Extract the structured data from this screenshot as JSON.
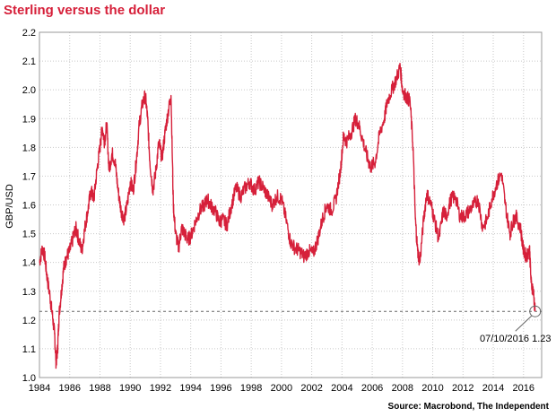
{
  "title": "Sterling versus the dollar",
  "source": "Source: Macrobond, The Independent",
  "chart_data": {
    "type": "line",
    "title": "Sterling versus the dollar",
    "xlabel": "",
    "ylabel": "GBP/USD",
    "xlim": [
      1984,
      2017.2
    ],
    "ylim": [
      1.0,
      2.2
    ],
    "x_ticks": [
      "1984",
      "1986",
      "1988",
      "1990",
      "1992",
      "1994",
      "1996",
      "1998",
      "2000",
      "2002",
      "2004",
      "2006",
      "2008",
      "2010",
      "2012",
      "2014",
      "2016"
    ],
    "y_ticks": [
      "1.0",
      "1.1",
      "1.2",
      "1.3",
      "1.4",
      "1.5",
      "1.6",
      "1.7",
      "1.8",
      "1.9",
      "2.0",
      "2.1",
      "2.2"
    ],
    "grid": true,
    "line_color": "#d6203a",
    "reference_line": 1.23,
    "annotation": {
      "label": "07/10/2016 1.23",
      "x": 2016.77,
      "y": 1.23
    },
    "series": [
      {
        "values": [
          [
            1984.0,
            1.4
          ],
          [
            1984.2,
            1.45
          ],
          [
            1984.35,
            1.42
          ],
          [
            1984.5,
            1.35
          ],
          [
            1984.7,
            1.28
          ],
          [
            1984.85,
            1.22
          ],
          [
            1985.0,
            1.15
          ],
          [
            1985.1,
            1.05
          ],
          [
            1985.2,
            1.1
          ],
          [
            1985.3,
            1.22
          ],
          [
            1985.45,
            1.3
          ],
          [
            1985.6,
            1.38
          ],
          [
            1985.8,
            1.42
          ],
          [
            1986.0,
            1.44
          ],
          [
            1986.2,
            1.48
          ],
          [
            1986.4,
            1.52
          ],
          [
            1986.6,
            1.48
          ],
          [
            1986.8,
            1.44
          ],
          [
            1987.0,
            1.52
          ],
          [
            1987.2,
            1.58
          ],
          [
            1987.4,
            1.65
          ],
          [
            1987.6,
            1.62
          ],
          [
            1987.8,
            1.72
          ],
          [
            1988.0,
            1.8
          ],
          [
            1988.15,
            1.87
          ],
          [
            1988.3,
            1.82
          ],
          [
            1988.45,
            1.88
          ],
          [
            1988.6,
            1.72
          ],
          [
            1988.8,
            1.78
          ],
          [
            1989.0,
            1.75
          ],
          [
            1989.2,
            1.65
          ],
          [
            1989.4,
            1.58
          ],
          [
            1989.6,
            1.55
          ],
          [
            1989.8,
            1.6
          ],
          [
            1990.0,
            1.68
          ],
          [
            1990.2,
            1.65
          ],
          [
            1990.4,
            1.75
          ],
          [
            1990.6,
            1.88
          ],
          [
            1990.8,
            1.95
          ],
          [
            1991.0,
            1.98
          ],
          [
            1991.15,
            1.9
          ],
          [
            1991.3,
            1.75
          ],
          [
            1991.5,
            1.65
          ],
          [
            1991.7,
            1.72
          ],
          [
            1991.9,
            1.82
          ],
          [
            1992.1,
            1.76
          ],
          [
            1992.3,
            1.85
          ],
          [
            1992.5,
            1.92
          ],
          [
            1992.7,
            1.98
          ],
          [
            1992.85,
            1.6
          ],
          [
            1993.0,
            1.5
          ],
          [
            1993.2,
            1.45
          ],
          [
            1993.4,
            1.52
          ],
          [
            1993.6,
            1.5
          ],
          [
            1993.8,
            1.48
          ],
          [
            1994.0,
            1.49
          ],
          [
            1994.3,
            1.54
          ],
          [
            1994.6,
            1.58
          ],
          [
            1994.9,
            1.6
          ],
          [
            1995.1,
            1.62
          ],
          [
            1995.3,
            1.6
          ],
          [
            1995.6,
            1.58
          ],
          [
            1995.9,
            1.54
          ],
          [
            1996.1,
            1.55
          ],
          [
            1996.4,
            1.53
          ],
          [
            1996.7,
            1.6
          ],
          [
            1997.0,
            1.66
          ],
          [
            1997.3,
            1.63
          ],
          [
            1997.6,
            1.66
          ],
          [
            1997.9,
            1.68
          ],
          [
            1998.2,
            1.65
          ],
          [
            1998.5,
            1.68
          ],
          [
            1998.8,
            1.66
          ],
          [
            1999.1,
            1.63
          ],
          [
            1999.4,
            1.6
          ],
          [
            1999.7,
            1.63
          ],
          [
            2000.0,
            1.62
          ],
          [
            2000.3,
            1.55
          ],
          [
            2000.6,
            1.47
          ],
          [
            2000.9,
            1.45
          ],
          [
            2001.2,
            1.44
          ],
          [
            2001.5,
            1.42
          ],
          [
            2001.8,
            1.44
          ],
          [
            2002.1,
            1.43
          ],
          [
            2002.4,
            1.48
          ],
          [
            2002.7,
            1.55
          ],
          [
            2003.0,
            1.6
          ],
          [
            2003.3,
            1.58
          ],
          [
            2003.6,
            1.62
          ],
          [
            2003.9,
            1.72
          ],
          [
            2004.1,
            1.84
          ],
          [
            2004.3,
            1.82
          ],
          [
            2004.6,
            1.85
          ],
          [
            2004.9,
            1.9
          ],
          [
            2005.1,
            1.88
          ],
          [
            2005.4,
            1.82
          ],
          [
            2005.7,
            1.76
          ],
          [
            2005.9,
            1.73
          ],
          [
            2006.2,
            1.75
          ],
          [
            2006.5,
            1.85
          ],
          [
            2006.8,
            1.9
          ],
          [
            2007.0,
            1.96
          ],
          [
            2007.3,
            2.0
          ],
          [
            2007.6,
            2.04
          ],
          [
            2007.85,
            2.08
          ],
          [
            2008.0,
            2.0
          ],
          [
            2008.2,
            1.98
          ],
          [
            2008.5,
            1.96
          ],
          [
            2008.7,
            1.8
          ],
          [
            2008.85,
            1.55
          ],
          [
            2009.0,
            1.44
          ],
          [
            2009.15,
            1.4
          ],
          [
            2009.4,
            1.55
          ],
          [
            2009.6,
            1.64
          ],
          [
            2009.9,
            1.6
          ],
          [
            2010.1,
            1.55
          ],
          [
            2010.4,
            1.48
          ],
          [
            2010.7,
            1.58
          ],
          [
            2010.9,
            1.56
          ],
          [
            2011.2,
            1.62
          ],
          [
            2011.5,
            1.63
          ],
          [
            2011.8,
            1.56
          ],
          [
            2012.1,
            1.56
          ],
          [
            2012.4,
            1.58
          ],
          [
            2012.7,
            1.6
          ],
          [
            2013.0,
            1.62
          ],
          [
            2013.3,
            1.52
          ],
          [
            2013.6,
            1.55
          ],
          [
            2013.9,
            1.62
          ],
          [
            2014.2,
            1.67
          ],
          [
            2014.55,
            1.71
          ],
          [
            2014.8,
            1.6
          ],
          [
            2015.1,
            1.5
          ],
          [
            2015.3,
            1.54
          ],
          [
            2015.5,
            1.56
          ],
          [
            2015.8,
            1.52
          ],
          [
            2016.0,
            1.44
          ],
          [
            2016.2,
            1.42
          ],
          [
            2016.4,
            1.45
          ],
          [
            2016.5,
            1.33
          ],
          [
            2016.65,
            1.3
          ],
          [
            2016.77,
            1.23
          ]
        ]
      }
    ]
  }
}
